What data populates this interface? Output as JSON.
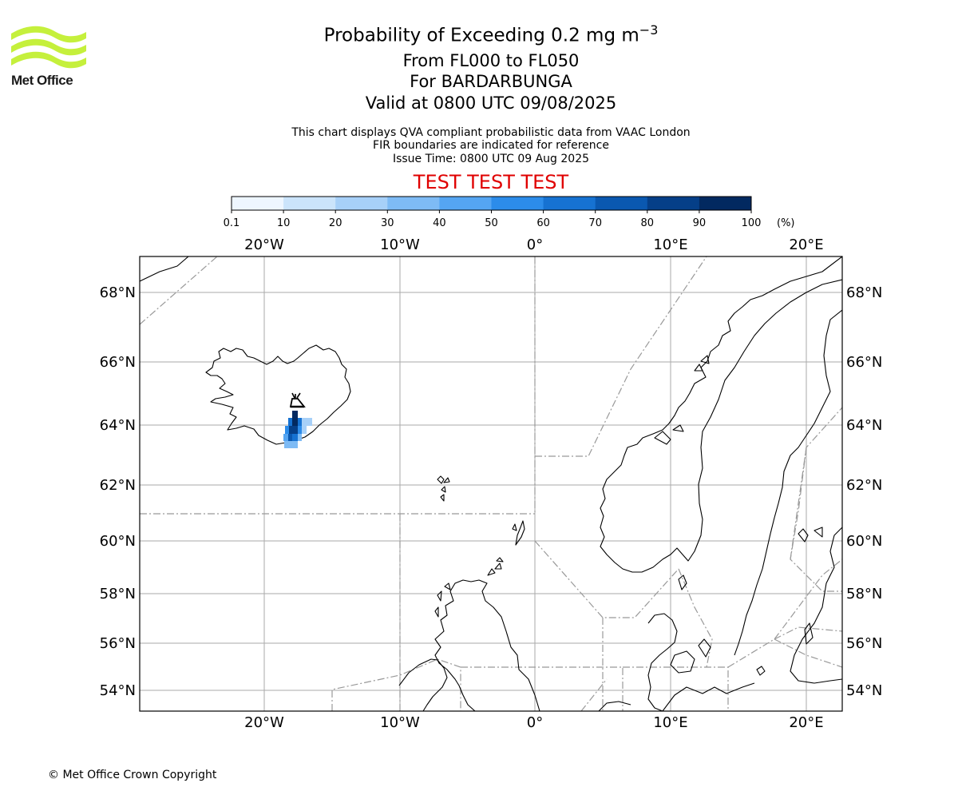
{
  "logo": {
    "text": "Met Office",
    "icon": "met-office-waves-icon",
    "color": "#c5f03c"
  },
  "title": {
    "main_prefix": "Probability of Exceeding 0.2 mg m",
    "main_exp": "−3",
    "line2": "From FL000 to FL050",
    "line3": "For BARDARBUNGA",
    "line4": "Valid at 0800 UTC 09/08/2025"
  },
  "subtitle": {
    "line1": "This chart displays QVA compliant probabilistic data from VAAC London",
    "line2": "FIR boundaries are indicated for reference",
    "line3": "Issue Time: 0800 UTC 09 Aug 2025"
  },
  "test_banner": "TEST TEST TEST",
  "test_color": "#e00000",
  "colorbar": {
    "ticks": [
      "0.1",
      "10",
      "20",
      "30",
      "40",
      "50",
      "60",
      "70",
      "80",
      "90",
      "100"
    ],
    "unit": "(%)",
    "colors": [
      "#eef6ff",
      "#cbe4fb",
      "#a7d0f8",
      "#7ebbf5",
      "#55a5f2",
      "#2c8cea",
      "#1672d2",
      "#0a58b0",
      "#053f88",
      "#022960"
    ]
  },
  "map": {
    "projection": "lambert-conformal",
    "volcano_icon": "volcano-icon",
    "lon_labels": [
      "20°W",
      "10°W",
      "0°",
      "10°E",
      "20°E"
    ],
    "lat_labels": [
      "68°N",
      "66°N",
      "64°N",
      "62°N",
      "60°N",
      "58°N",
      "56°N",
      "54°N"
    ]
  },
  "copyright": "© Met Office Crown Copyright"
}
